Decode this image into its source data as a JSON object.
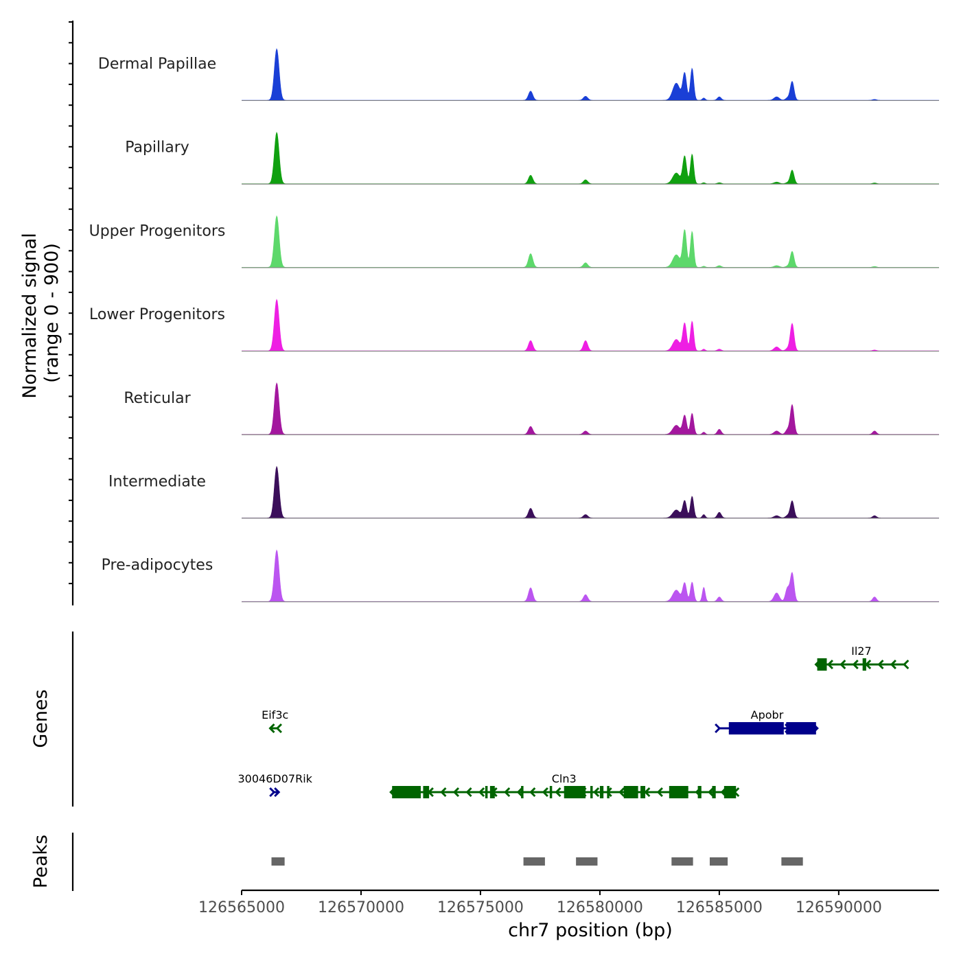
{
  "chart_data": {
    "type": "area",
    "chromosome": "chr7",
    "xlabel": "chr7 position (bp)",
    "ylabel_line1": "Normalized signal",
    "ylabel_line2": "(range 0 - 900)",
    "ylim": [
      0,
      900
    ],
    "xlim": [
      126565000,
      126594200
    ],
    "x_ticks": [
      126565000,
      126570000,
      126575000,
      126580000,
      126585000,
      126590000
    ],
    "x_tick_labels": [
      "126565000",
      "126570000",
      "126575000",
      "126580000",
      "126585000",
      "126590000"
    ],
    "peak_template": [
      {
        "pos": 126566470,
        "width": 100
      },
      {
        "pos": 126577100,
        "width": 90
      },
      {
        "pos": 126579400,
        "width": 90
      },
      {
        "pos": 126583200,
        "width": 150
      },
      {
        "pos": 126583550,
        "width": 80
      },
      {
        "pos": 126583860,
        "width": 70
      },
      {
        "pos": 126584350,
        "width": 60
      },
      {
        "pos": 126585000,
        "width": 80
      },
      {
        "pos": 126587400,
        "width": 110
      },
      {
        "pos": 126587850,
        "width": 80
      },
      {
        "pos": 126588050,
        "width": 80
      },
      {
        "pos": 126591500,
        "width": 80
      }
    ],
    "tracks": [
      {
        "name": "Dermal Papillae",
        "color": "#1a3fd6",
        "heights": [
          900,
          160,
          70,
          300,
          470,
          560,
          40,
          60,
          60,
          40,
          330,
          15
        ]
      },
      {
        "name": "Papillary",
        "color": "#10a010",
        "heights": [
          900,
          150,
          70,
          190,
          480,
          520,
          20,
          20,
          30,
          20,
          240,
          15
        ]
      },
      {
        "name": "Upper Progenitors",
        "color": "#5dd86b",
        "heights": [
          900,
          240,
          80,
          220,
          650,
          630,
          20,
          30,
          30,
          20,
          280,
          15
        ]
      },
      {
        "name": "Lower Progenitors",
        "color": "#ee1fe3",
        "heights": [
          900,
          180,
          180,
          200,
          480,
          520,
          30,
          30,
          70,
          40,
          480,
          15
        ]
      },
      {
        "name": "Reticular",
        "color": "#a3179e",
        "heights": [
          900,
          140,
          60,
          160,
          330,
          370,
          40,
          90,
          60,
          80,
          520,
          60
        ]
      },
      {
        "name": "Intermediate",
        "color": "#3b0f5a",
        "heights": [
          900,
          170,
          60,
          140,
          300,
          380,
          60,
          100,
          40,
          40,
          300,
          40
        ]
      },
      {
        "name": "Pre-adipocytes",
        "color": "#bb55f0",
        "heights": [
          900,
          240,
          120,
          200,
          320,
          340,
          250,
          80,
          150,
          230,
          500,
          80
        ]
      }
    ],
    "genes_title": "Genes",
    "genes": [
      {
        "name": "Il27",
        "strand": "-",
        "color": "#006400",
        "row": 1,
        "start": 126589100,
        "end": 126592800,
        "exons": [
          [
            126589100,
            126589500
          ],
          [
            126591000,
            126591150
          ]
        ]
      },
      {
        "name": "Eif3c",
        "strand": "-",
        "color": "#006400",
        "row": 2,
        "start": 126566250,
        "end": 126566550,
        "exons": []
      },
      {
        "name": "Apobr",
        "strand": "+",
        "color": "#00008b",
        "row": 2,
        "start": 126584950,
        "end": 126589050,
        "exons": [
          [
            126585400,
            126587700
          ],
          [
            126587800,
            126589050
          ]
        ]
      },
      {
        "name": "30046D07Rik",
        "strand": "+",
        "color": "#00008b",
        "row": 3,
        "start": 126566300,
        "end": 126566500,
        "exons": []
      },
      {
        "name": "Cln3",
        "strand": "-",
        "color": "#006400",
        "row": 3,
        "start": 126571300,
        "end": 126585700,
        "exons": [
          [
            126571300,
            126572500
          ],
          [
            126572600,
            126572850
          ],
          [
            126575200,
            126575300
          ],
          [
            126575400,
            126575600
          ],
          [
            126576700,
            126576800
          ],
          [
            126577900,
            126578000
          ],
          [
            126578500,
            126579400
          ],
          [
            126579600,
            126579700
          ],
          [
            126580000,
            126580150
          ],
          [
            126580300,
            126580400
          ],
          [
            126581000,
            126581600
          ],
          [
            126581700,
            126581900
          ],
          [
            126582900,
            126583700
          ],
          [
            126584100,
            126584250
          ],
          [
            126584700,
            126584850
          ],
          [
            126585200,
            126585700
          ]
        ]
      }
    ],
    "peaks_title": "Peaks",
    "peaks": [
      [
        126566250,
        126566800
      ],
      [
        126576800,
        126577700
      ],
      [
        126579000,
        126579900
      ],
      [
        126583000,
        126583900
      ],
      [
        126584600,
        126585350
      ],
      [
        126587600,
        126588500
      ]
    ]
  }
}
